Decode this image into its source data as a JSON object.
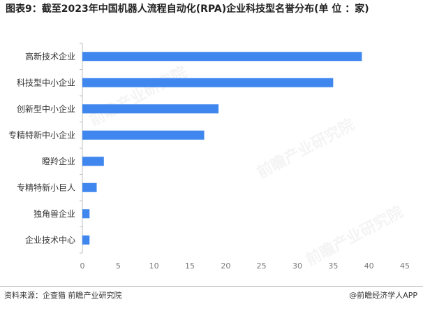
{
  "title": "图表9：截至2023年中国机器人流程自动化(RPA)企业科技型名誉分布(单 位 ：家)",
  "source": "资料来源：企查猫 前瞻产业研究院",
  "credit": "@前瞻经济学人APP",
  "watermark": "前瞻产业研究院",
  "colors": {
    "bar": "#3f87ee",
    "axis": "#bfbfbf",
    "tick": "#777777"
  },
  "chart_data": {
    "type": "bar",
    "orientation": "horizontal",
    "categories": [
      "高新技术企业",
      "科技型中小企业",
      "创新型中小企业",
      "专精特新中小企业",
      "瞪羚企业",
      "专精特新小巨人",
      "独角兽企业",
      "企业技术中心"
    ],
    "values": [
      39,
      35,
      19,
      17,
      3,
      2,
      1,
      1
    ],
    "xlim": [
      0,
      45
    ],
    "xticks": [
      0,
      5,
      10,
      15,
      20,
      25,
      30,
      35,
      40,
      45
    ],
    "grid": false,
    "legend": "none"
  }
}
